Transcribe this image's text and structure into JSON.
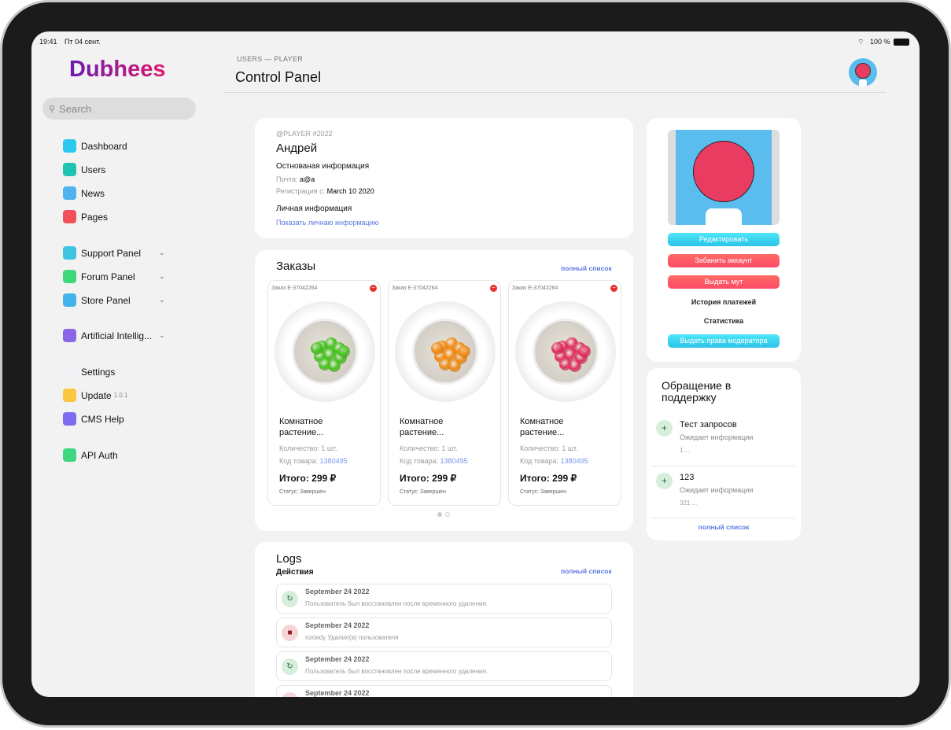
{
  "status_bar": {
    "time": "19:41",
    "date": "Пт 04 сент.",
    "battery": "100 %"
  },
  "sidebar": {
    "logo": "Dubhees",
    "search_placeholder": "Search",
    "items": [
      {
        "label": "Dashboard",
        "icon": "speedometer-icon",
        "color": "#2bc8f0"
      },
      {
        "label": "Users",
        "icon": "alien-icon",
        "color": "#1fc3b2"
      },
      {
        "label": "News",
        "icon": "window-icon",
        "color": "#4fb3ef"
      },
      {
        "label": "Pages",
        "icon": "layers-icon",
        "color": "#f2505a"
      },
      {
        "label": "Support Panel",
        "icon": "support-icon",
        "color": "#3ec3e0",
        "expandable": true
      },
      {
        "label": "Forum Panel",
        "icon": "chat-icon",
        "color": "#3fd77b",
        "expandable": true
      },
      {
        "label": "Store Panel",
        "icon": "card-icon",
        "color": "#43b3ec",
        "expandable": true
      },
      {
        "label": "Artificial Intellig...",
        "icon": "robot-icon",
        "color": "#8a66e6",
        "expandable": true
      },
      {
        "label": "Settings",
        "icon": "gears-icon",
        "color": "#f2f2f7"
      },
      {
        "label": "Update",
        "icon": "refresh-icon",
        "color": "#fcc640",
        "badge": "1.0.1"
      },
      {
        "label": "CMS Help",
        "icon": "diamond-icon",
        "color": "#7b6cf0"
      },
      {
        "label": "API Auth",
        "icon": "bolt-icon",
        "color": "#3ed67e"
      }
    ]
  },
  "header": {
    "breadcrumb": "USERS — PLAYER",
    "title": "Control Panel"
  },
  "profile": {
    "handle": "@PLAYER #2022",
    "name": "Андрей",
    "basic_heading": "Остнованая информация",
    "email_label": "Почта:",
    "email": "a@a",
    "reg_label": "Регистрация с:",
    "reg_date": "March 10 2020",
    "personal_heading": "Личная информация",
    "show_personal": "Показать личнаю информацию"
  },
  "orders": {
    "title": "Заказы",
    "full_list": "полный список",
    "items": [
      {
        "id": "Заказ E-37042264",
        "name": "Комнатное растение...",
        "qty": "Количество: 1 шт.",
        "code_label": "Код товара:",
        "code": "1380495",
        "total": "Итого: 299 ₽",
        "status": "Статус: Завершен",
        "plant_color": "#46c21e"
      },
      {
        "id": "Заказ E-37042264",
        "name": "Комнатное растение...",
        "qty": "Количество: 1 шт.",
        "code_label": "Код товара:",
        "code": "1380495",
        "total": "Итого: 299 ₽",
        "status": "Статус: Завершен",
        "plant_color": "#f28a12"
      },
      {
        "id": "Заказ E-37042264",
        "name": "Комнатное растение...",
        "qty": "Количество: 1 шт.",
        "code_label": "Код товара:",
        "code": "1380495",
        "total": "Итого: 299 ₽",
        "status": "Статус: Завершен",
        "plant_color": "#e0305c"
      }
    ],
    "pages": 2,
    "current_page": 1
  },
  "logs": {
    "title": "Logs",
    "subtitle": "Действия",
    "full_list": "полный список",
    "items": [
      {
        "date": "September 24 2022",
        "text": "Пользователь был восстановлен после временного удаления.",
        "type": "restore"
      },
      {
        "date": "September 24 2022",
        "text": "roxtedy Удалил(а) пользователя",
        "type": "delete"
      },
      {
        "date": "September 24 2022",
        "text": "Пользователь был восстановлен после временного удаления.",
        "type": "restore"
      },
      {
        "date": "September 24 2022",
        "text": "",
        "type": "delete"
      }
    ]
  },
  "actions": {
    "edit": "Редактировать",
    "ban": "Забанить аккаунт",
    "mute": "Выдать мут",
    "payments": "История платежей",
    "stats": "Статистика",
    "moderator": "Выдать права модератора"
  },
  "support": {
    "title": "Обращение в поддержку",
    "tickets": [
      {
        "title": "Тест запросов",
        "status": "Ожидает информации",
        "preview": "1 ..."
      },
      {
        "title": "123",
        "status": "Ожидает информации",
        "preview": "321 ..."
      }
    ],
    "full_list": "полный список"
  }
}
